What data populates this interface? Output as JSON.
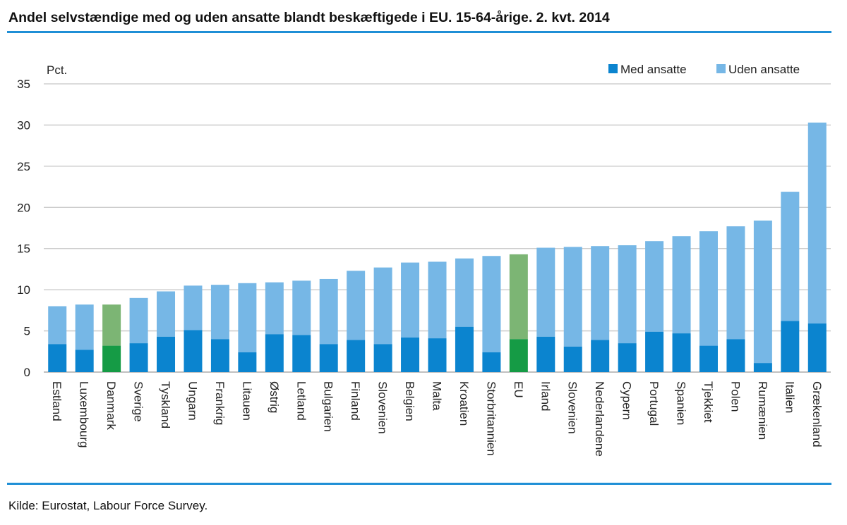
{
  "title": "Andel selvstændige med og uden ansatte blandt beskæftigede i EU. 15-64-årige. 2. kvt. 2014",
  "source": "Kilde: Eurostat, Labour Force Survey.",
  "colors": {
    "med_ansatte": "#0b84cf",
    "uden_ansatte": "#76b7e6",
    "highlight_med": "#159b45",
    "highlight_uden": "#7cb574",
    "rule": "#1f8fd6",
    "grid": "#c6c6c6"
  },
  "chart_data": {
    "type": "bar",
    "stacked": true,
    "ylabel": "Pct.",
    "ylim": [
      0,
      35
    ],
    "yticks": [
      0,
      5,
      10,
      15,
      20,
      25,
      30,
      35
    ],
    "grid": true,
    "legend_position": "top-right",
    "categories": [
      "Estland",
      "Luxembourg",
      "Danmark",
      "Sverige",
      "Tyskland",
      "Ungarn",
      "Frankrig",
      "Litauen",
      "Østrig",
      "Letland",
      "Bulgarien",
      "Finland",
      "Slovenien",
      "Belgien",
      "Malta",
      "Kroatien",
      "Storbritannien",
      "EU",
      "Irland",
      "Slovenien",
      "Nederlandene",
      "Cypern",
      "Portugal",
      "Spanien",
      "Tjekkiet",
      "Polen",
      "Rumænien",
      "Italien",
      "Grækenland"
    ],
    "highlighted": [
      "Danmark",
      "EU"
    ],
    "series": [
      {
        "name": "Med ansatte",
        "values": [
          3.4,
          2.7,
          3.2,
          3.5,
          4.3,
          5.1,
          4.0,
          2.4,
          4.6,
          4.5,
          3.4,
          3.9,
          3.4,
          4.2,
          4.1,
          5.5,
          2.4,
          4.0,
          4.3,
          3.1,
          3.9,
          3.5,
          4.9,
          4.7,
          3.2,
          4.0,
          1.1,
          6.2,
          5.9
        ]
      },
      {
        "name": "Uden ansatte",
        "values": [
          4.6,
          5.5,
          5.0,
          5.5,
          5.5,
          5.4,
          6.6,
          8.4,
          6.3,
          6.6,
          7.9,
          8.4,
          9.3,
          9.1,
          9.3,
          8.3,
          11.7,
          10.3,
          10.8,
          12.1,
          11.4,
          11.9,
          11.0,
          11.8,
          13.9,
          13.7,
          17.3,
          15.7,
          24.4
        ]
      }
    ]
  }
}
